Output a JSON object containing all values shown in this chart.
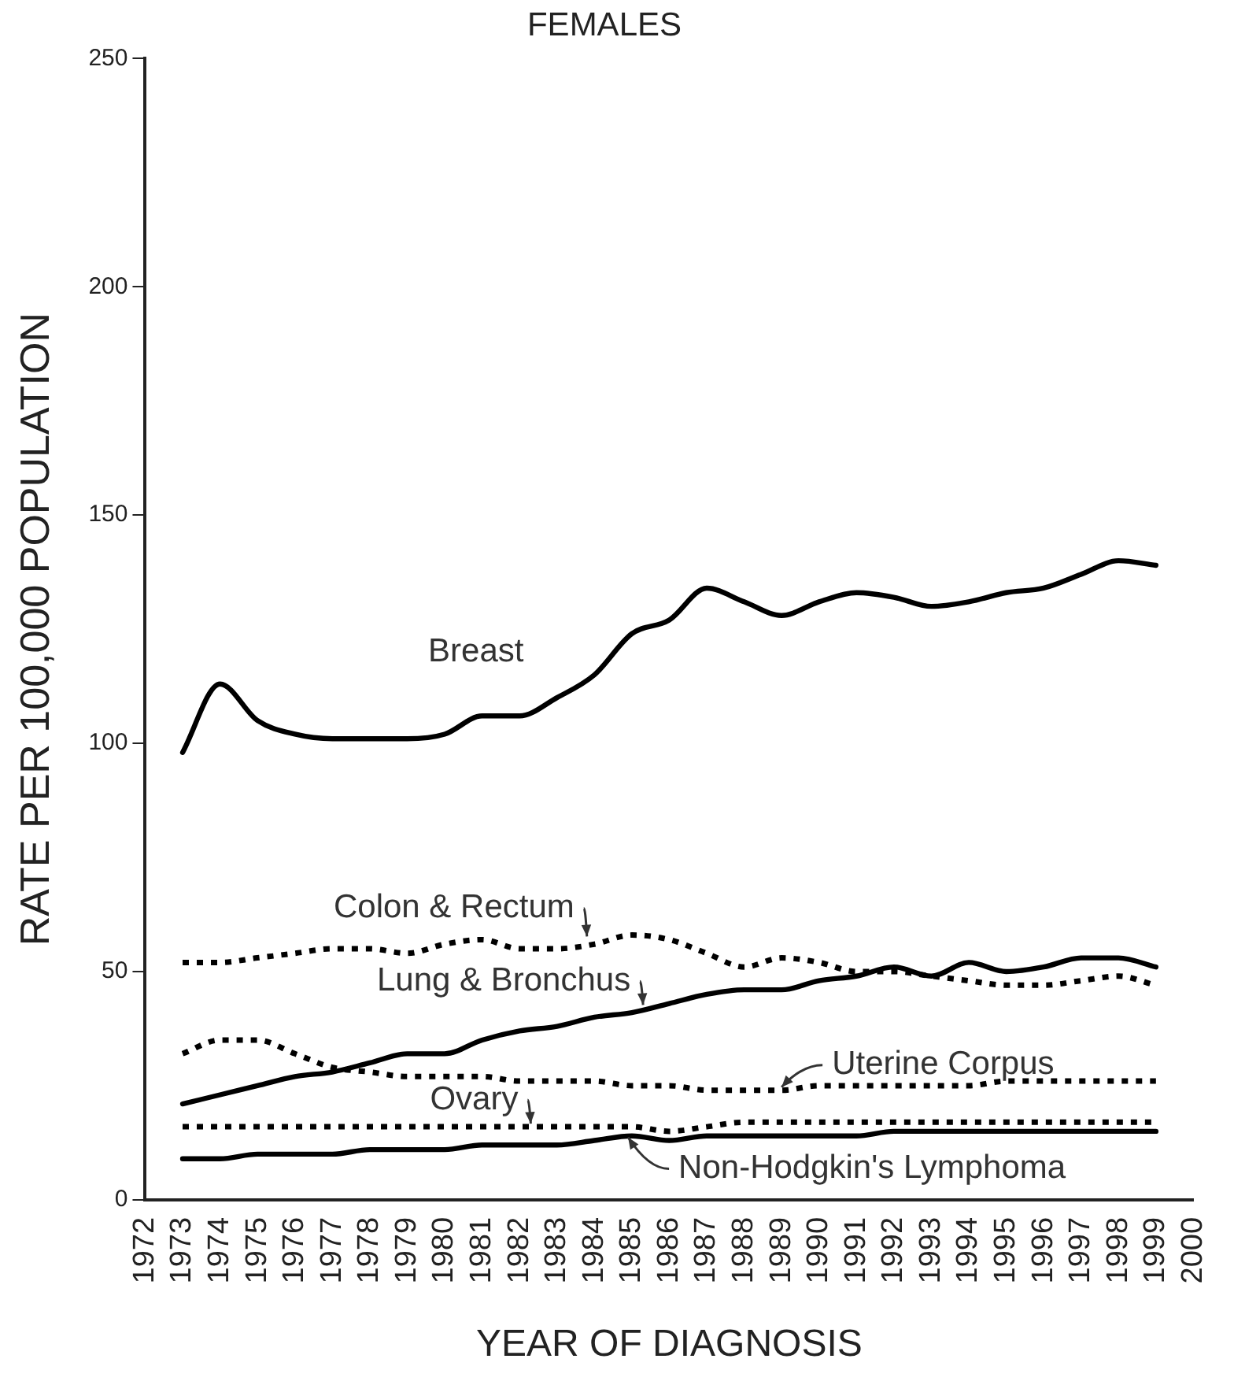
{
  "chart_data": {
    "type": "line",
    "title": "FEMALES",
    "xlabel": "YEAR OF DIAGNOSIS",
    "ylabel": "RATE PER 100,000 POPULATION",
    "x": [
      1973,
      1974,
      1975,
      1976,
      1977,
      1978,
      1979,
      1980,
      1981,
      1982,
      1983,
      1984,
      1985,
      1986,
      1987,
      1988,
      1989,
      1990,
      1991,
      1992,
      1993,
      1994,
      1995,
      1996,
      1997,
      1998,
      1999
    ],
    "series": [
      {
        "color": "#000000",
        "line_style": "solid",
        "values": [
          98,
          113,
          105,
          102,
          101,
          101,
          101,
          102,
          106,
          106,
          110,
          115,
          124,
          127,
          134,
          131,
          128,
          131,
          133,
          132,
          130,
          131,
          133,
          134,
          137,
          140,
          139
        ]
      },
      {
        "color": "#000000",
        "line_style": "dotted",
        "values": [
          52,
          52,
          53,
          54,
          55,
          55,
          54,
          56,
          57,
          55,
          55,
          56,
          58,
          57,
          54,
          51,
          53,
          52,
          50,
          50,
          49,
          48,
          47,
          47,
          48,
          49,
          47
        ]
      },
      {
        "color": "#000000",
        "line_style": "solid",
        "values": [
          21,
          23,
          25,
          27,
          28,
          30,
          32,
          32,
          35,
          37,
          38,
          40,
          41,
          43,
          45,
          46,
          46,
          48,
          49,
          51,
          49,
          52,
          50,
          51,
          53,
          53,
          51
        ]
      },
      {
        "color": "#000000",
        "line_style": "dotted",
        "values": [
          32,
          35,
          35,
          32,
          29,
          28,
          27,
          27,
          27,
          26,
          26,
          26,
          25,
          25,
          24,
          24,
          24,
          25,
          25,
          25,
          25,
          25,
          26,
          26,
          26,
          26,
          26
        ]
      },
      {
        "color": "#000000",
        "line_style": "dotted",
        "values": [
          16,
          16,
          16,
          16,
          16,
          16,
          16,
          16,
          16,
          16,
          16,
          16,
          16,
          15,
          16,
          17,
          17,
          17,
          17,
          17,
          17,
          17,
          17,
          17,
          17,
          17,
          17
        ]
      },
      {
        "color": "#000000",
        "line_style": "solid",
        "values": [
          9,
          9,
          10,
          10,
          10,
          11,
          11,
          11,
          12,
          12,
          12,
          13,
          14,
          13,
          14,
          14,
          14,
          14,
          14,
          15,
          15,
          15,
          15,
          15,
          15,
          15,
          15
        ]
      }
    ],
    "annotations": [
      "Breast",
      {
        "text": "Colon & Rectum",
        "x": 1983.8,
        "y": 57
      },
      {
        "text": "Lung & Bronchus",
        "x": 1985.3,
        "y": 42
      },
      {
        "text": "Uterine Corpus",
        "x": 1989,
        "y": 24
      },
      {
        "text": "Ovary",
        "x": 1982.3,
        "y": 16
      },
      {
        "text": "Non-Hodgkin's Lymphoma",
        "x": 1984.9,
        "y": 13
      }
    ],
    "xlim": [
      1972,
      2000
    ],
    "xticks": [
      1972,
      1973,
      1974,
      1975,
      1976,
      1977,
      1978,
      1979,
      1980,
      1981,
      1982,
      1983,
      1984,
      1985,
      1986,
      1987,
      1988,
      1989,
      1990,
      1991,
      1992,
      1993,
      1994,
      1995,
      1996,
      1997,
      1998,
      1999,
      2000
    ],
    "ylim": [
      0,
      250
    ],
    "yticks": [
      0,
      50,
      100,
      150,
      200,
      250
    ],
    "grid": false,
    "legend": false,
    "marker": "none"
  }
}
